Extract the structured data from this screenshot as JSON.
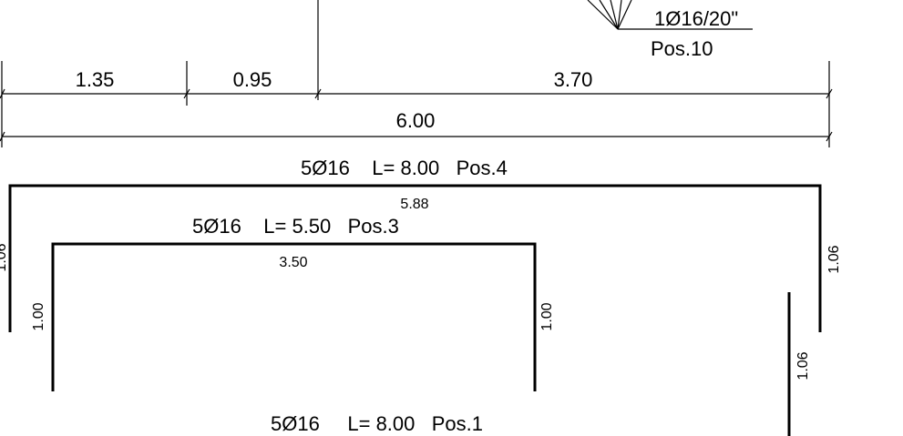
{
  "rebar_callout": {
    "label": "1Ø16/20\"",
    "position": "Pos.10"
  },
  "dimensions": {
    "segments": [
      {
        "value": "1.35"
      },
      {
        "value": "0.95"
      },
      {
        "value": "3.70"
      }
    ],
    "total": "6.00"
  },
  "bars": [
    {
      "label": "5Ø16    L= 8.00   Pos.4",
      "span": "5.88",
      "leg_left": "1.06",
      "leg_right": "1.06"
    },
    {
      "label": "5Ø16    L= 5.50   Pos.3",
      "span": "3.50",
      "leg_left": "1.00",
      "leg_right": "1.00"
    },
    {
      "label": "5Ø16     L= 8.00   Pos.1",
      "leg_right": "1.06"
    }
  ]
}
